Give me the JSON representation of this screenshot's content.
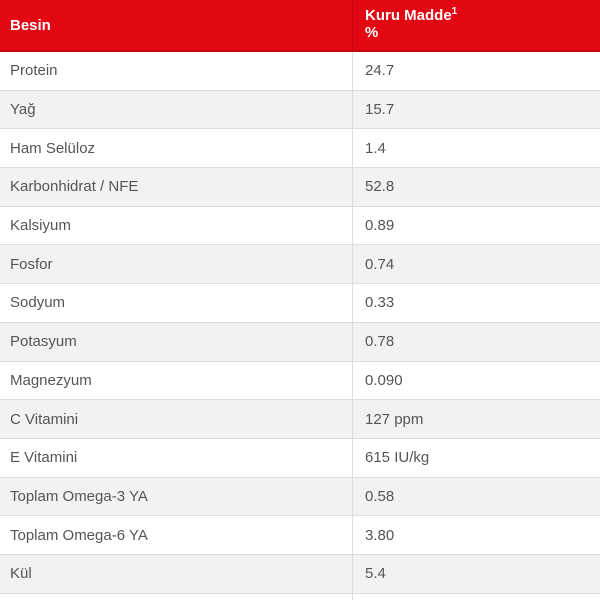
{
  "table": {
    "header": {
      "col1_label": "Besin",
      "col2_title": "Kuru Madde",
      "col2_footnote": "1",
      "col2_unit": "%"
    },
    "rows": [
      {
        "label": "Protein",
        "value": "24.7"
      },
      {
        "label": "Yağ",
        "value": "15.7"
      },
      {
        "label": "Ham Selüloz",
        "value": "1.4"
      },
      {
        "label": "Karbonhidrat / NFE",
        "value": "52.8"
      },
      {
        "label": "Kalsiyum",
        "value": "0.89"
      },
      {
        "label": "Fosfor",
        "value": "0.74"
      },
      {
        "label": "Sodyum",
        "value": "0.33"
      },
      {
        "label": "Potasyum",
        "value": "0.78"
      },
      {
        "label": "Magnezyum",
        "value": "0.090"
      },
      {
        "label": "C Vitamini",
        "value": "127 ppm"
      },
      {
        "label": "E Vitamini",
        "value": "615 IU/kg"
      },
      {
        "label": "Toplam Omega-3 YA",
        "value": "0.58"
      },
      {
        "label": "Toplam Omega-6 YA",
        "value": "3.80"
      },
      {
        "label": "Kül",
        "value": "5.4"
      }
    ],
    "colors": {
      "header_bg": "#e30613",
      "header_border": "#bf0510",
      "header_divider": "#c20511",
      "row_alt_bg": "#f2f2f2",
      "row_border": "#dddddd",
      "cell_text": "#555555",
      "header_text": "#ffffff"
    }
  }
}
